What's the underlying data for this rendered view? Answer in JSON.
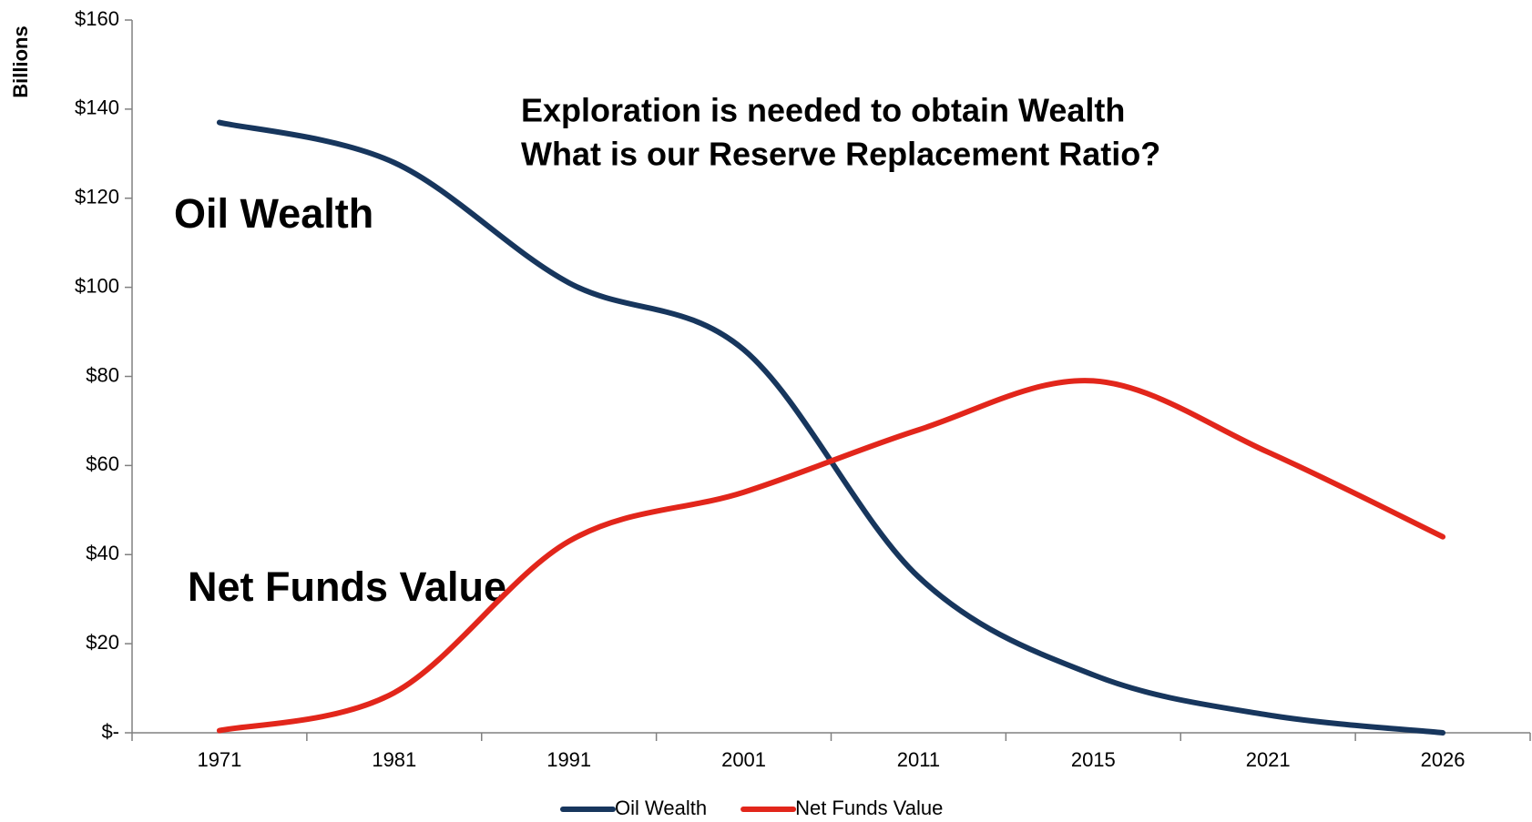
{
  "chart_data": {
    "type": "line",
    "y_label": "Billions",
    "annotations": [
      "Exploration is needed to obtain Wealth",
      "What is our Reserve Replacement Ratio?",
      "Oil Wealth",
      "Net Funds Value"
    ],
    "categories": [
      "1971",
      "1981",
      "1991",
      "2001",
      "2011",
      "2015",
      "2021",
      "2026"
    ],
    "series": [
      {
        "name": "Oil Wealth",
        "color": "#17365d",
        "values": [
          137,
          128,
          101,
          86,
          35,
          13,
          4,
          0
        ]
      },
      {
        "name": "Net Funds Value",
        "color": "#e2261b",
        "values": [
          0.5,
          9,
          43,
          54,
          68,
          79,
          63,
          44
        ]
      }
    ],
    "ylim": [
      0,
      160
    ],
    "yticks": [
      {
        "value": 0,
        "label": "$-"
      },
      {
        "value": 20,
        "label": "$20"
      },
      {
        "value": 40,
        "label": "$40"
      },
      {
        "value": 60,
        "label": "$60"
      },
      {
        "value": 80,
        "label": "$80"
      },
      {
        "value": 100,
        "label": "$100"
      },
      {
        "value": 120,
        "label": "$120"
      },
      {
        "value": 140,
        "label": "$140"
      },
      {
        "value": 160,
        "label": "$160"
      }
    ],
    "smooth": true,
    "legend": "bottom"
  }
}
